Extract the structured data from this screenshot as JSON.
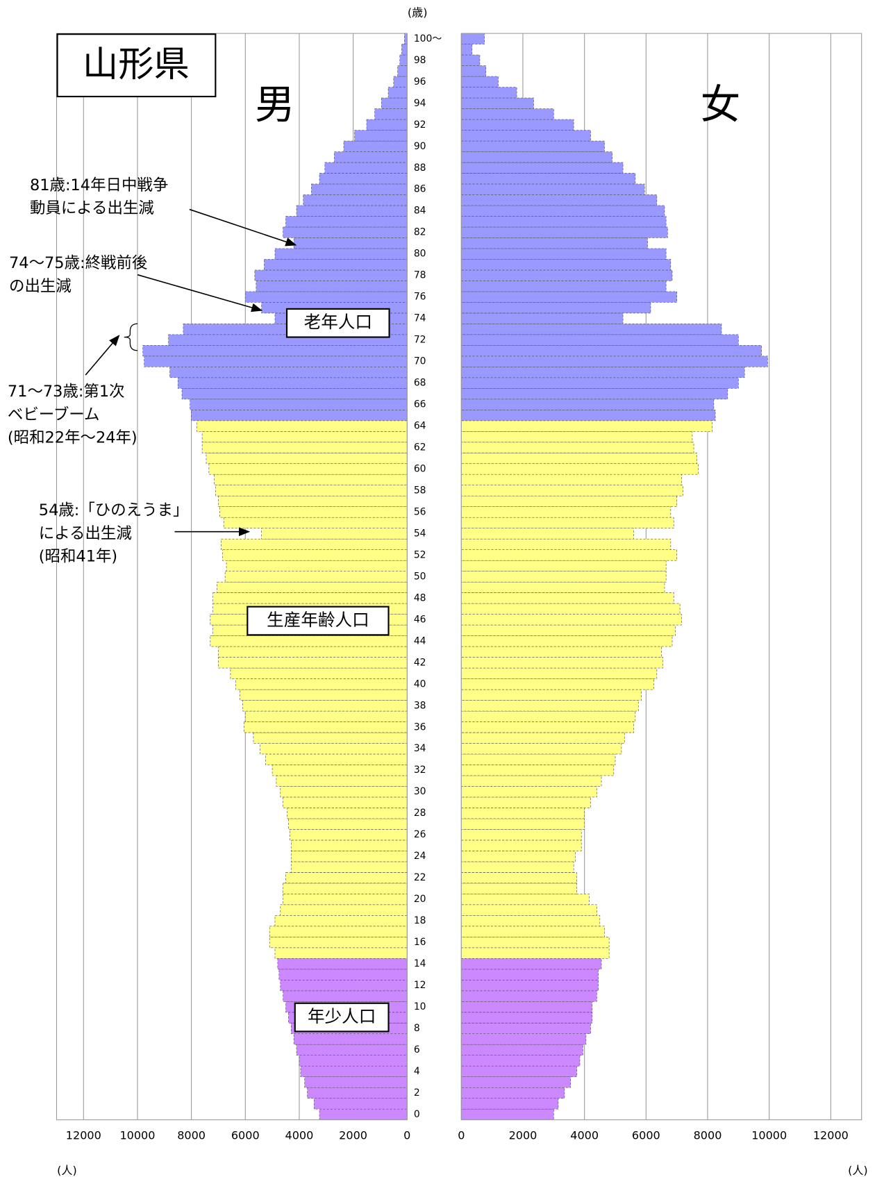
{
  "chart_data": {
    "type": "pyramid",
    "title": "山形県",
    "y_unit": "(歳)",
    "x_unit": "(人)",
    "categories": [
      "0",
      null,
      "2",
      null,
      "4",
      null,
      "6",
      null,
      "8",
      null,
      "10",
      null,
      "12",
      null,
      "14",
      null,
      "16",
      null,
      "18",
      null,
      "20",
      null,
      "22",
      null,
      "24",
      null,
      "26",
      null,
      "28",
      null,
      "30",
      null,
      "32",
      null,
      "34",
      null,
      "36",
      null,
      "38",
      null,
      "40",
      null,
      "42",
      null,
      "44",
      null,
      "46",
      null,
      "48",
      null,
      "50",
      null,
      "52",
      null,
      "54",
      null,
      "56",
      null,
      "58",
      null,
      "60",
      null,
      "62",
      null,
      "64",
      null,
      "66",
      null,
      "68",
      null,
      "70",
      null,
      "72",
      null,
      "74",
      null,
      "76",
      null,
      "78",
      null,
      "80",
      null,
      "82",
      null,
      "84",
      null,
      "86",
      null,
      "88",
      null,
      "90",
      null,
      "92",
      null,
      "94",
      null,
      "96",
      null,
      "98",
      null,
      "100～"
    ],
    "series": [
      {
        "name": "男",
        "values": [
          3250,
          3450,
          3700,
          3800,
          3950,
          4000,
          4100,
          4200,
          4300,
          4400,
          4500,
          4600,
          4700,
          4750,
          4800,
          4900,
          5100,
          5100,
          4900,
          4700,
          4600,
          4600,
          4500,
          4300,
          4300,
          4300,
          4350,
          4400,
          4450,
          4600,
          4700,
          4850,
          5000,
          5250,
          5450,
          5700,
          6050,
          6000,
          6100,
          6200,
          6350,
          6550,
          7000,
          7000,
          7300,
          7200,
          7300,
          7200,
          7200,
          7050,
          6750,
          6700,
          6850,
          6900,
          5400,
          6800,
          6950,
          7000,
          7100,
          7150,
          7350,
          7450,
          7600,
          7600,
          7800,
          8000,
          8050,
          8350,
          8500,
          8800,
          9750,
          9800,
          8850,
          8300,
          4900,
          5400,
          6000,
          5600,
          5650,
          5300,
          4900,
          4200,
          4600,
          4500,
          4100,
          3850,
          3550,
          3250,
          3050,
          2700,
          2350,
          1950,
          1500,
          1200,
          950,
          700,
          500,
          350,
          270,
          200,
          100
        ]
      },
      {
        "name": "女",
        "values": [
          3000,
          3150,
          3350,
          3550,
          3750,
          3850,
          3950,
          4050,
          4200,
          4250,
          4250,
          4400,
          4450,
          4450,
          4550,
          4800,
          4800,
          4650,
          4500,
          4400,
          4150,
          3750,
          3750,
          3650,
          3700,
          3900,
          3900,
          4000,
          4000,
          4200,
          4400,
          4550,
          4950,
          5000,
          5200,
          5300,
          5600,
          5650,
          5750,
          5850,
          6250,
          6350,
          6550,
          6500,
          6850,
          6950,
          7150,
          7100,
          6900,
          6600,
          6650,
          6650,
          7000,
          6800,
          5600,
          6900,
          6800,
          7000,
          7200,
          7150,
          7700,
          7650,
          7550,
          7500,
          8150,
          8250,
          8200,
          8650,
          9000,
          9200,
          9950,
          9750,
          9000,
          8450,
          5250,
          6150,
          7000,
          6650,
          6850,
          6800,
          6650,
          6050,
          6700,
          6650,
          6600,
          6350,
          5950,
          5650,
          5250,
          4900,
          4650,
          4200,
          3650,
          3000,
          2350,
          1800,
          1200,
          800,
          600,
          350,
          750
        ]
      }
    ],
    "age_groups": [
      {
        "label": "年少人口",
        "color": "#cc88ff",
        "first": 0,
        "last": 14
      },
      {
        "label": "生産年齢人口",
        "color": "#ffff88",
        "first": 15,
        "last": 64
      },
      {
        "label": "老年人口",
        "color": "#9999ff",
        "first": 65,
        "last": 100
      }
    ],
    "xlim": [
      0,
      13000
    ],
    "xticks": [
      0,
      2000,
      4000,
      6000,
      8000,
      10000,
      12000
    ],
    "grid": true,
    "annotations": [
      {
        "lines": [
          "81歳:14年日中戦争",
          "動員による出生減"
        ]
      },
      {
        "lines": [
          "74～75歳:終戦前後",
          "の出生減"
        ]
      },
      {
        "lines": [
          "71～73歳:第1次",
          "ベビーブーム",
          "(昭和22年～24年)"
        ]
      },
      {
        "lines": [
          "54歳:「ひのえうま」",
          "による出生減",
          "(昭和41年)"
        ]
      }
    ]
  }
}
